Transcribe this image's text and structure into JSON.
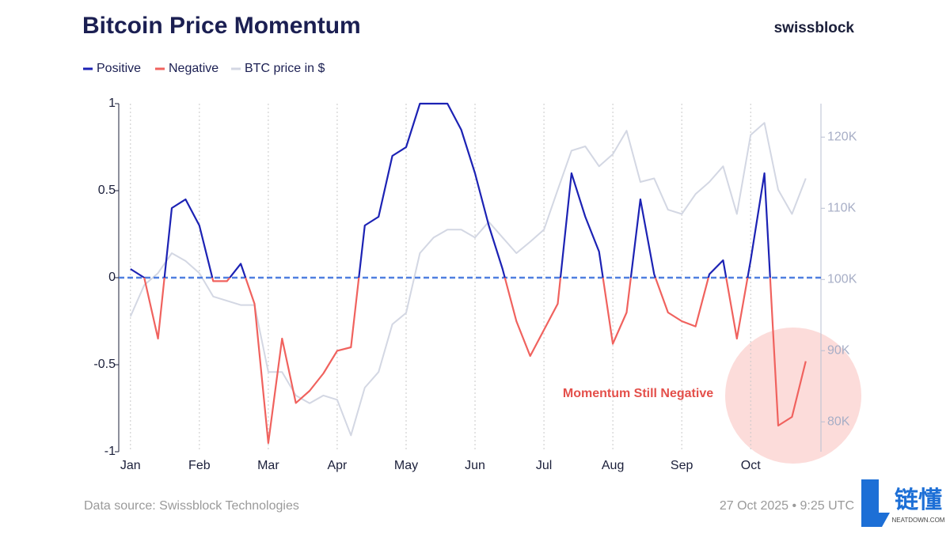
{
  "chart_data": {
    "type": "momentum-line",
    "title": "Bitcoin Price Momentum",
    "brand": "swissblock",
    "momentum": {
      "positive": {
        "name": "Positive",
        "color": "#1c22b4"
      },
      "negative": {
        "name": "Negative",
        "color": "#f0625e"
      },
      "values": [
        0.05,
        0.0,
        -0.35,
        0.4,
        0.45,
        0.3,
        -0.02,
        -0.02,
        0.08,
        -0.15,
        -0.95,
        -0.35,
        -0.72,
        -0.65,
        -0.55,
        -0.42,
        -0.4,
        0.3,
        0.35,
        0.7,
        0.75,
        1.0,
        1.0,
        1.0,
        0.85,
        0.6,
        0.3,
        0.05,
        -0.25,
        -0.45,
        -0.3,
        -0.15,
        0.6,
        0.35,
        0.15,
        -0.38,
        -0.2,
        0.45,
        0.02,
        -0.2,
        -0.25,
        -0.28,
        0.02,
        0.1,
        -0.35,
        0.1,
        0.6,
        -0.85,
        -0.8,
        -0.48
      ]
    },
    "series": [
      {
        "name": "BTC price in $",
        "color": "#d3d7e3",
        "axis": "y2",
        "values": [
          94800,
          99200,
          100900,
          103700,
          102600,
          100900,
          97600,
          97000,
          96400,
          96400,
          87000,
          87000,
          83700,
          82600,
          83700,
          83100,
          78100,
          84800,
          87000,
          93700,
          95300,
          103700,
          105900,
          107000,
          107000,
          105900,
          108100,
          105900,
          103700,
          105300,
          107000,
          112600,
          118100,
          118700,
          115900,
          117600,
          120900,
          113700,
          114200,
          109800,
          109200,
          112000,
          113700,
          115900,
          109200,
          120300,
          122000,
          112600,
          109200,
          114200
        ]
      }
    ],
    "x": [
      0,
      0.2,
      0.4,
      0.6,
      0.8,
      1,
      1.2,
      1.4,
      1.6,
      1.8,
      2,
      2.2,
      2.4,
      2.6,
      2.8,
      3,
      3.2,
      3.4,
      3.6,
      3.8,
      4,
      4.2,
      4.4,
      4.6,
      4.8,
      5,
      5.2,
      5.4,
      5.6,
      5.8,
      6,
      6.2,
      6.4,
      6.6,
      6.8,
      7,
      7.2,
      7.4,
      7.6,
      7.8,
      8,
      8.2,
      8.4,
      8.6,
      8.8,
      9,
      9.2,
      9.4,
      9.6,
      9.8
    ],
    "xlim": [
      -0.17,
      10.02
    ],
    "xticks": [
      {
        "value": 0,
        "label": "Jan"
      },
      {
        "value": 1,
        "label": "Feb"
      },
      {
        "value": 2,
        "label": "Mar"
      },
      {
        "value": 3,
        "label": "Apr"
      },
      {
        "value": 4,
        "label": "May"
      },
      {
        "value": 5,
        "label": "Jun"
      },
      {
        "value": 6,
        "label": "Jul"
      },
      {
        "value": 7,
        "label": "Aug"
      },
      {
        "value": 8,
        "label": "Sep"
      },
      {
        "value": 9,
        "label": "Oct"
      }
    ],
    "ylim": [
      -1,
      1
    ],
    "yticks": [
      1,
      0.5,
      0,
      -0.5,
      -1
    ],
    "y2lim": [
      75800,
      124700
    ],
    "y2ticks": [
      {
        "value": 120000,
        "label": "120K"
      },
      {
        "value": 110000,
        "label": "110K"
      },
      {
        "value": 100000,
        "label": "100K"
      },
      {
        "value": 90000,
        "label": "90K"
      },
      {
        "value": 80000,
        "label": "80K"
      }
    ],
    "annotation": "Momentum Still Negative",
    "source": "Data source: Swissblock Technologies",
    "timestamp": "27 Oct 2025 • 9:25 UTC",
    "watermark": {
      "name": "链懂",
      "site": "NEATDOWN.COM"
    }
  }
}
